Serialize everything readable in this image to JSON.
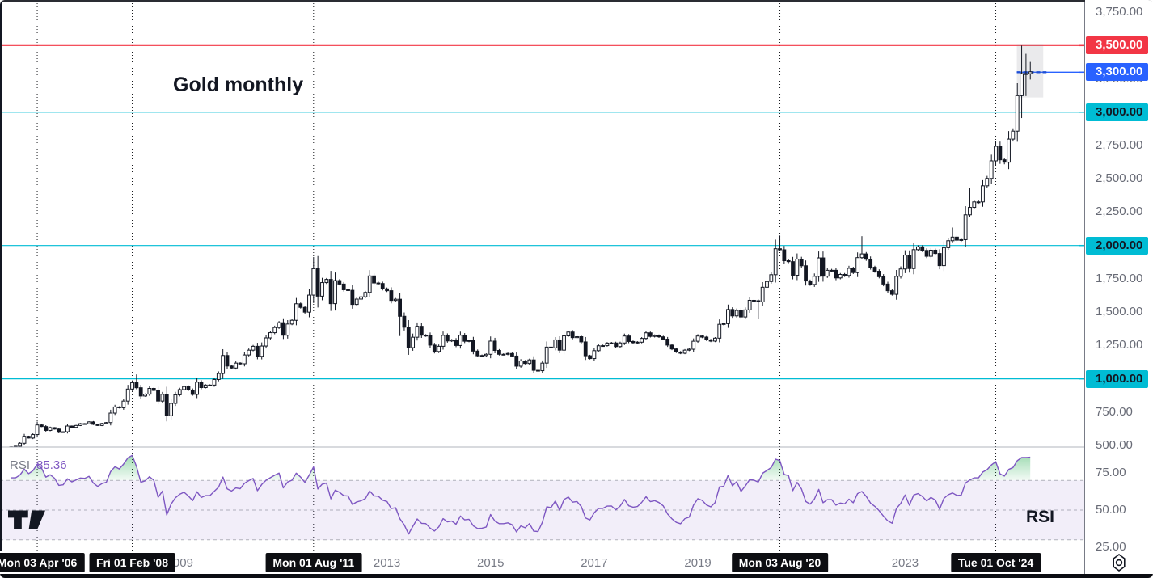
{
  "chart_data": {
    "type": "candlestick",
    "title": "Gold monthly",
    "symbol": "Gold",
    "interval": "monthly",
    "start_month": "2005-10",
    "end_month": "2025-06",
    "ylim": [
      488,
      3840
    ],
    "grid": "off",
    "closes": [
      490,
      495,
      517,
      569,
      556,
      582,
      654,
      642,
      613,
      634,
      623,
      599,
      603,
      646,
      636,
      650,
      664,
      663,
      677,
      659,
      650,
      665,
      672,
      743,
      789,
      783,
      833,
      923,
      971,
      933,
      871,
      885,
      928,
      913,
      833,
      884,
      723,
      816,
      880,
      919,
      942,
      916,
      883,
      975,
      934,
      953,
      953,
      995,
      1040,
      1175,
      1096,
      1081,
      1118,
      1113,
      1179,
      1215,
      1244,
      1169,
      1246,
      1307,
      1346,
      1385,
      1421,
      1327,
      1411,
      1439,
      1563,
      1536,
      1500,
      1628,
      1826,
      1620,
      1722,
      1746,
      1564,
      1737,
      1711,
      1668,
      1664,
      1558,
      1598,
      1615,
      1648,
      1772,
      1719,
      1715,
      1675,
      1661,
      1588,
      1597,
      1469,
      1387,
      1234,
      1312,
      1394,
      1327,
      1323,
      1253,
      1205,
      1244,
      1326,
      1284,
      1291,
      1250,
      1327,
      1282,
      1287,
      1208,
      1173,
      1175,
      1184,
      1283,
      1213,
      1184,
      1184,
      1190,
      1171,
      1095,
      1134,
      1115,
      1142,
      1064,
      1061,
      1118,
      1238,
      1232,
      1292,
      1215,
      1322,
      1351,
      1309,
      1316,
      1277,
      1173,
      1152,
      1211,
      1248,
      1249,
      1268,
      1269,
      1242,
      1269,
      1321,
      1280,
      1271,
      1275,
      1303,
      1345,
      1318,
      1325,
      1315,
      1298,
      1253,
      1224,
      1201,
      1192,
      1215,
      1222,
      1282,
      1321,
      1313,
      1292,
      1283,
      1305,
      1409,
      1414,
      1520,
      1472,
      1513,
      1464,
      1517,
      1589,
      1586,
      1577,
      1687,
      1730,
      1781,
      1976,
      1968,
      1886,
      1879,
      1777,
      1898,
      1848,
      1734,
      1708,
      1769,
      1907,
      1770,
      1814,
      1814,
      1757,
      1783,
      1775,
      1829,
      1797,
      1909,
      1937,
      1897,
      1837,
      1807,
      1766,
      1711,
      1661,
      1634,
      1769,
      1824,
      1928,
      1827,
      1969,
      1990,
      1963,
      1919,
      1965,
      1940,
      1849,
      1984,
      2036,
      2063,
      2040,
      2044,
      2230,
      2286,
      2327,
      2327,
      2448,
      2503,
      2635,
      2744,
      2643,
      2625,
      2798,
      2858,
      3124,
      3289,
      3289,
      3303
    ],
    "wick_overrides": {
      "29": {
        "high": 1033
      },
      "36": {
        "low": 681
      },
      "70": {
        "high": 1913
      },
      "71": {
        "high": 1921,
        "low": 1535
      },
      "90": {
        "low": 1321
      },
      "92": {
        "low": 1180
      },
      "173": {
        "low": 1451
      },
      "178": {
        "high": 2075
      },
      "197": {
        "high": 2070
      },
      "218": {
        "high": 2135
      },
      "222": {
        "high": 2432
      },
      "234": {
        "high": 3500,
        "low": 2956
      },
      "235": {
        "high": 3438,
        "low": 3121
      },
      "236": {
        "high": 3377,
        "low": 3245
      }
    },
    "price_lines": [
      {
        "value": 3500,
        "label": "3,500.00",
        "color": "#f23645",
        "label_bg": "#f23645",
        "label_fg": "#ffffff",
        "extent": "full"
      },
      {
        "value": 3300,
        "label": "3,300.00",
        "color": "#2962ff",
        "label_bg": "#2962ff",
        "label_fg": "#ffffff",
        "extent": "right"
      },
      {
        "value": 3000,
        "label": "3,000.00",
        "color": "#00bcd4",
        "label_bg": "#00bcd4",
        "label_fg": "#131722",
        "extent": "full"
      },
      {
        "value": 2000,
        "label": "2,000.00",
        "color": "#00bcd4",
        "label_bg": "#00bcd4",
        "label_fg": "#131722",
        "extent": "full"
      },
      {
        "value": 1000,
        "label": "1,000.00",
        "color": "#00bcd4",
        "label_bg": "#00bcd4",
        "label_fg": "#131722",
        "extent": "full"
      }
    ],
    "price_ticks": [
      {
        "value": 3750,
        "label": "3,750.00"
      },
      {
        "value": 3250,
        "label": "3,250.00"
      },
      {
        "value": 2750,
        "label": "2,750.00"
      },
      {
        "value": 2500,
        "label": "2,500.00"
      },
      {
        "value": 2250,
        "label": "2,250.00"
      },
      {
        "value": 1750,
        "label": "1,750.00"
      },
      {
        "value": 1500,
        "label": "1,500.00"
      },
      {
        "value": 1250,
        "label": "1,250.00"
      },
      {
        "value": 750,
        "label": "750.00"
      },
      {
        "value": 500,
        "label": "500.00"
      }
    ],
    "vertical_markers": [
      {
        "label": "Mon 03 Apr '06",
        "month_index": 6
      },
      {
        "label": "Fri 01 Feb '08",
        "month_index": 28
      },
      {
        "label": "Mon 01 Aug '11",
        "month_index": 70
      },
      {
        "label": "Mon 03 Aug '20",
        "month_index": 178
      },
      {
        "label": "Tue 01 Oct '24",
        "month_index": 228
      }
    ],
    "year_labels": [
      {
        "text": "2009",
        "month_index": 39
      },
      {
        "text": "2013",
        "month_index": 87
      },
      {
        "text": "2015",
        "month_index": 111
      },
      {
        "text": "2017",
        "month_index": 135
      },
      {
        "text": "2019",
        "month_index": 159
      },
      {
        "text": "2023",
        "month_index": 207
      }
    ],
    "highlight_box": {
      "from_month_index": 234,
      "to_month_index": 236,
      "price_top": 3505,
      "price_bottom": 3110
    },
    "rsi": {
      "name": "RSI",
      "value_label": "85.36",
      "annotation": "RSI",
      "period": 14,
      "levels": [
        70,
        50,
        30
      ],
      "ylim": [
        23,
        92
      ],
      "ticks": [
        {
          "value": 75,
          "label": "75.00"
        },
        {
          "value": 50,
          "label": "50.00"
        },
        {
          "value": 25,
          "label": "25.00"
        }
      ]
    }
  },
  "colors": {
    "background": "#ffffff",
    "candle_up": "#ffffff",
    "candle_down": "#131722",
    "candle_outline": "#131722",
    "red_level": "#f23645",
    "blue_level": "#2962ff",
    "cyan_level": "#00bcd4",
    "rsi_line": "#7e57c2",
    "rsi_band": "rgba(126,87,194,0.10)",
    "rsi_overbought_fill": "#22ab4d",
    "rsi_oversold_fill": "#f7525f",
    "axis_text": "#686b76",
    "year_text": "#787b86",
    "marker_badge_bg": "#0d0e12",
    "separator": "#b2b5be",
    "highlight_box_fill": "rgba(130,133,142,0.17)"
  }
}
